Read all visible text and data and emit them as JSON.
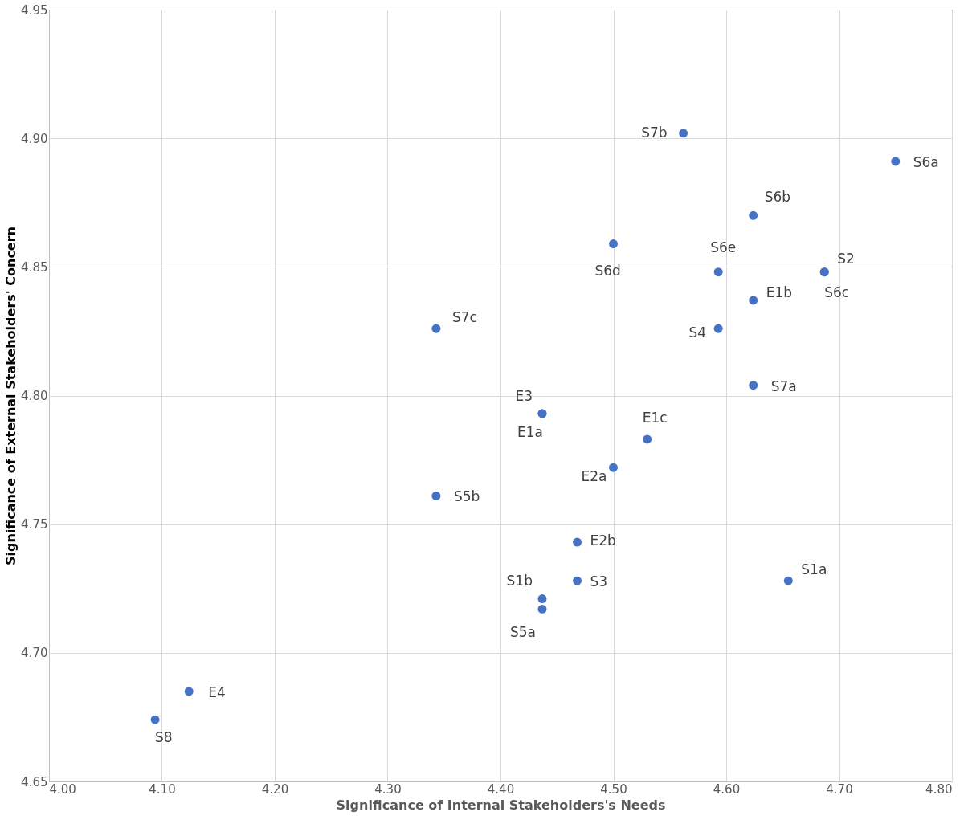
{
  "chart_data": {
    "type": "scatter",
    "xlabel": "Significance of Internal Stakeholders's Needs",
    "ylabel": "Significance of External Stakeholders' Concern",
    "x": [
      4.562,
      4.75,
      4.624,
      4.5,
      4.593,
      4.687,
      4.687,
      4.624,
      4.593,
      4.343,
      4.624,
      4.437,
      4.437,
      4.53,
      4.5,
      4.343,
      4.468,
      4.468,
      4.655,
      4.437,
      4.437,
      4.124,
      4.094
    ],
    "series": [
      {
        "color": "#4472c4",
        "values": [
          4.902,
          4.891,
          4.87,
          4.859,
          4.848,
          4.848,
          4.848,
          4.837,
          4.826,
          4.826,
          4.804,
          4.793,
          4.793,
          4.783,
          4.772,
          4.761,
          4.743,
          4.728,
          4.728,
          4.721,
          4.717,
          4.685,
          4.674
        ]
      }
    ],
    "annotations": [
      {
        "text": "S7b",
        "x": 4.562,
        "y": 4.902
      },
      {
        "text": "S6a",
        "x": 4.75,
        "y": 4.891
      },
      {
        "text": "S6b",
        "x": 4.624,
        "y": 4.87
      },
      {
        "text": "S6d",
        "x": 4.5,
        "y": 4.859
      },
      {
        "text": "S6e",
        "x": 4.593,
        "y": 4.848
      },
      {
        "text": "S2",
        "x": 4.687,
        "y": 4.848
      },
      {
        "text": "S6c",
        "x": 4.687,
        "y": 4.848
      },
      {
        "text": "E1b",
        "x": 4.624,
        "y": 4.837
      },
      {
        "text": "S4",
        "x": 4.593,
        "y": 4.826
      },
      {
        "text": "S7c",
        "x": 4.343,
        "y": 4.826
      },
      {
        "text": "S7a",
        "x": 4.624,
        "y": 4.804
      },
      {
        "text": "E3",
        "x": 4.437,
        "y": 4.793
      },
      {
        "text": "E1a",
        "x": 4.437,
        "y": 4.793
      },
      {
        "text": "E1c",
        "x": 4.53,
        "y": 4.783
      },
      {
        "text": "E2a",
        "x": 4.5,
        "y": 4.772
      },
      {
        "text": "S5b",
        "x": 4.343,
        "y": 4.761
      },
      {
        "text": "E2b",
        "x": 4.468,
        "y": 4.743
      },
      {
        "text": "S3",
        "x": 4.468,
        "y": 4.728
      },
      {
        "text": "S1a",
        "x": 4.655,
        "y": 4.728
      },
      {
        "text": "S1b",
        "x": 4.437,
        "y": 4.721
      },
      {
        "text": "S5a",
        "x": 4.437,
        "y": 4.717
      },
      {
        "text": "E4",
        "x": 4.124,
        "y": 4.685
      },
      {
        "text": "S8",
        "x": 4.094,
        "y": 4.674
      }
    ],
    "xlim": [
      4.0,
      4.8
    ],
    "xticks": [
      {
        "value": 4.0,
        "label": "4.00"
      },
      {
        "value": 4.1,
        "label": "4.10"
      },
      {
        "value": 4.2,
        "label": "4.20"
      },
      {
        "value": 4.3,
        "label": "4.30"
      },
      {
        "value": 4.4,
        "label": "4.40"
      },
      {
        "value": 4.5,
        "label": "4.50"
      },
      {
        "value": 4.6,
        "label": "4.60"
      },
      {
        "value": 4.7,
        "label": "4.70"
      },
      {
        "value": 4.8,
        "label": "4.80"
      }
    ],
    "ylim": [
      4.65,
      4.95
    ],
    "yticks": [
      {
        "value": 4.65,
        "label": "4.65"
      },
      {
        "value": 4.7,
        "label": "4.70"
      },
      {
        "value": 4.75,
        "label": "4.75"
      },
      {
        "value": 4.8,
        "label": "4.80"
      },
      {
        "value": 4.85,
        "label": "4.85"
      },
      {
        "value": 4.9,
        "label": "4.90"
      },
      {
        "value": 4.95,
        "label": "4.95"
      }
    ],
    "grid": true,
    "marker": "circle"
  }
}
